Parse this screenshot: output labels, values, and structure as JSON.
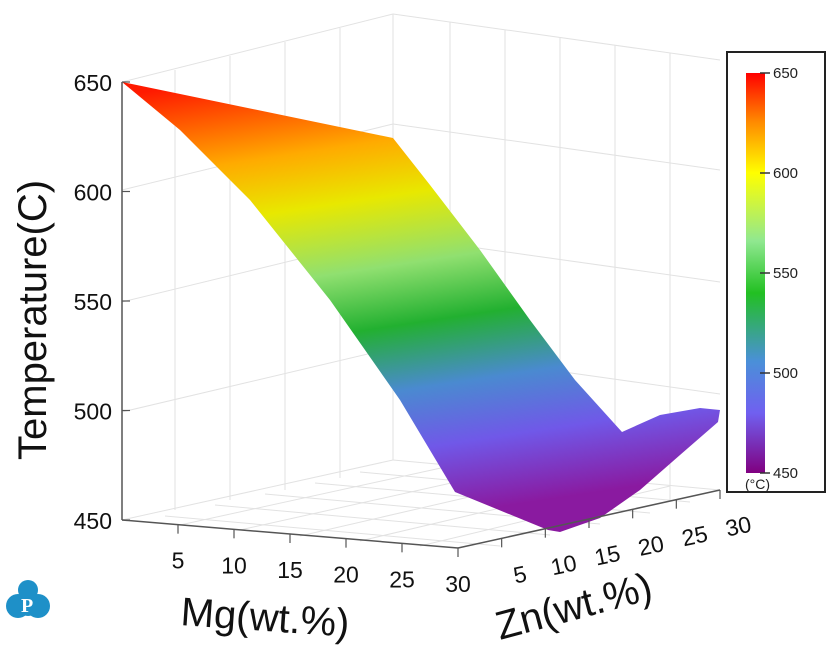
{
  "chart_data": {
    "type": "surface",
    "title": "",
    "xlabel": "Mg(wt.%)",
    "ylabel": "Zn(wt.%)",
    "zlabel": "Temperature(C)",
    "x_ticks": [
      "5",
      "10",
      "15",
      "20",
      "25",
      "30"
    ],
    "y_ticks": [
      "5",
      "10",
      "15",
      "20",
      "25",
      "30"
    ],
    "z_ticks": [
      "450",
      "500",
      "550",
      "600",
      "650"
    ],
    "xlim": [
      0,
      30
    ],
    "ylim": [
      0,
      30
    ],
    "zlim": [
      450,
      650
    ],
    "surface_corners_approx": [
      {
        "Mg": 0,
        "Zn": 0,
        "T": 650
      },
      {
        "Mg": 0,
        "Zn": 30,
        "T": 625
      },
      {
        "Mg": 30,
        "Zn": 0,
        "T": 462
      },
      {
        "Mg": 30,
        "Zn": 10,
        "T": 450
      },
      {
        "Mg": 30,
        "Zn": 20,
        "T": 490
      },
      {
        "Mg": 30,
        "Zn": 30,
        "T": 500
      }
    ],
    "colorbar": {
      "unit": "(°C)",
      "ticks": [
        "650",
        "600",
        "550",
        "500",
        "450"
      ],
      "range": [
        450,
        650
      ],
      "colors": [
        "#ff0000",
        "#ff8800",
        "#ffff00",
        "#90e890",
        "#22bb22",
        "#4a90d0",
        "#7060f0",
        "#800080"
      ]
    },
    "grid": true,
    "legend": "right"
  }
}
